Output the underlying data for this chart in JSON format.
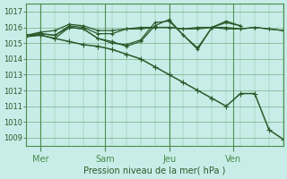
{
  "xlabel": "Pression niveau de la mer( hPa )",
  "background_color": "#c8ede8",
  "grid_color": "#4a8a4a",
  "line_color": "#2a5a2a",
  "ylim": [
    1008.5,
    1017.5
  ],
  "yticks": [
    1009,
    1010,
    1011,
    1012,
    1013,
    1014,
    1015,
    1016,
    1017
  ],
  "xlim": [
    0,
    36
  ],
  "day_labels": [
    "Mer",
    "Sam",
    "Jeu",
    "Ven"
  ],
  "day_positions": [
    2,
    11,
    20,
    29
  ],
  "series_flat1": {
    "x": [
      0,
      2,
      4,
      6,
      8,
      10,
      12,
      14,
      16,
      18,
      20,
      22,
      24,
      26,
      28,
      30,
      32,
      34,
      36
    ],
    "y": [
      1015.5,
      1015.7,
      1015.8,
      1016.2,
      1016.1,
      1015.8,
      1015.8,
      1015.9,
      1015.9,
      1016.0,
      1016.0,
      1015.9,
      1015.9,
      1016.0,
      1015.9,
      1015.9,
      1016.0,
      1015.9,
      1015.8
    ]
  },
  "series_flat2": {
    "x": [
      0,
      2,
      4,
      6,
      8,
      10,
      12,
      14,
      16,
      18,
      20,
      22,
      24,
      26,
      28,
      30,
      32,
      34,
      36
    ],
    "y": [
      1015.5,
      1015.6,
      1015.5,
      1016.1,
      1016.0,
      1015.6,
      1015.6,
      1015.9,
      1016.0,
      1016.0,
      1016.0,
      1015.9,
      1016.0,
      1016.0,
      1016.0,
      1015.9,
      1016.0,
      1015.9,
      1015.8
    ]
  },
  "series_wavy": {
    "x": [
      0,
      2,
      4,
      6,
      8,
      10,
      12,
      14,
      16,
      18,
      20,
      22,
      24,
      26,
      28,
      30
    ],
    "y": [
      1015.5,
      1015.6,
      1015.5,
      1016.0,
      1015.9,
      1015.3,
      1015.1,
      1014.8,
      1015.1,
      1016.1,
      1016.5,
      1015.5,
      1014.7,
      1016.0,
      1016.4,
      1016.1
    ]
  },
  "series_dip1": {
    "x": [
      0,
      2,
      4,
      6,
      8,
      10,
      12,
      14,
      16,
      18,
      20,
      22,
      24,
      26,
      28,
      30
    ],
    "y": [
      1015.4,
      1015.5,
      1015.3,
      1016.0,
      1015.9,
      1015.3,
      1015.0,
      1014.9,
      1015.2,
      1016.3,
      1016.4,
      1015.5,
      1014.6,
      1016.0,
      1016.3,
      1016.1
    ]
  },
  "series_drop": {
    "x": [
      0,
      2,
      4,
      6,
      8,
      10,
      12,
      14,
      16,
      18,
      20,
      22,
      24,
      26,
      28,
      30,
      32,
      34,
      36
    ],
    "y": [
      1015.5,
      1015.5,
      1015.3,
      1015.1,
      1014.9,
      1014.8,
      1014.6,
      1014.3,
      1014.0,
      1013.5,
      1013.0,
      1012.5,
      1012.0,
      1011.5,
      1011.0,
      1011.8,
      1011.8,
      1009.5,
      1008.9
    ]
  }
}
